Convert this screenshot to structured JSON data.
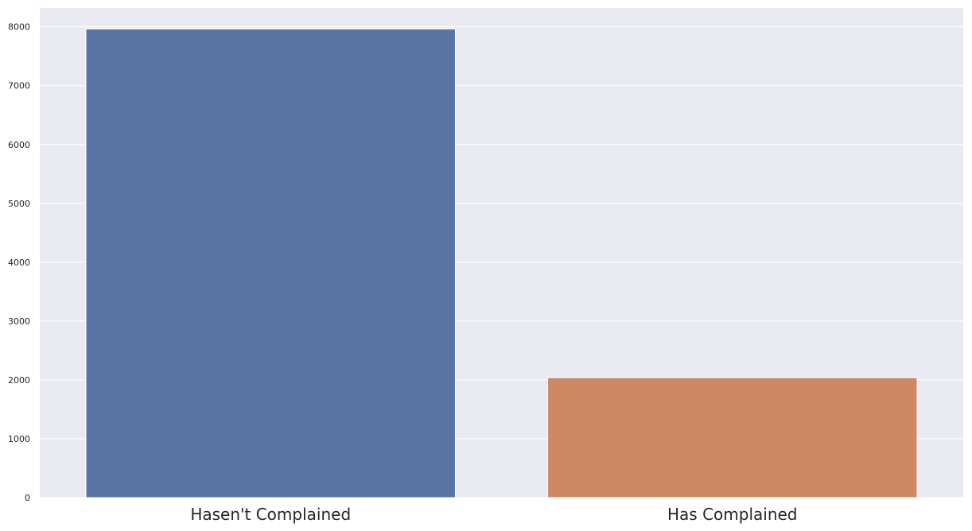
{
  "chart_data": {
    "type": "bar",
    "categories": [
      "Hasen't Complained",
      "Has Complained"
    ],
    "values": [
      7962,
      2038
    ],
    "colors": [
      "#5975a4",
      "#cc8963"
    ],
    "yticks": [
      "0",
      "1000",
      "2000",
      "3000",
      "4000",
      "5000",
      "6000",
      "7000",
      "8000"
    ],
    "ylim": [
      0,
      8320
    ],
    "grid": true,
    "background": "#eaeaf2",
    "title": "",
    "xlabel": "",
    "ylabel": ""
  }
}
